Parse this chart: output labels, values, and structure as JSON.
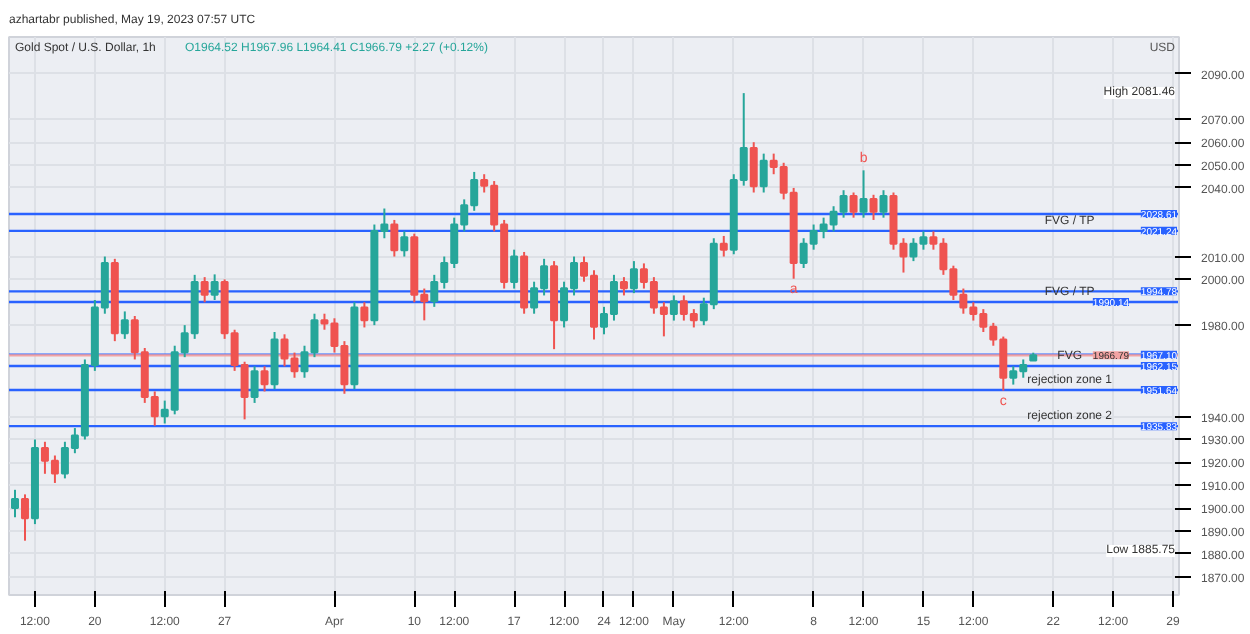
{
  "chart_data": {
    "type": "candlestick",
    "title": "Gold Spot / U.S. Dollar, 1h",
    "subtitle": "O1964.52 H1967.96 L1964.41 C1966.79 +2.27 (+0.12%)",
    "ylabel": "USD",
    "categories": [
      null,
      null,
      "12:00",
      null,
      null,
      null,
      null,
      null,
      "20",
      null,
      null,
      null,
      null,
      null,
      null,
      "12:00",
      null,
      null,
      null,
      null,
      null,
      "27",
      null,
      null,
      null,
      null,
      null,
      null,
      null,
      null,
      null,
      null,
      "Apr",
      null,
      null,
      null,
      null,
      null,
      null,
      null,
      "10",
      null,
      null,
      null,
      "12:00",
      null,
      null,
      null,
      null,
      null,
      "17",
      null,
      null,
      null,
      null,
      "12:00",
      null,
      null,
      null,
      "24",
      null,
      null,
      "12:00",
      null,
      null,
      null,
      "May",
      null,
      null,
      null,
      null,
      null,
      "12:00",
      null,
      null,
      null,
      null,
      null,
      null,
      null,
      "8",
      null,
      null,
      null,
      null,
      "12:00",
      null,
      null,
      null,
      null,
      null,
      "15",
      null,
      null,
      null,
      null,
      "12:00",
      null,
      null,
      null,
      null,
      null,
      null,
      null,
      "22",
      null,
      null,
      null,
      null,
      null,
      "12:00",
      null,
      null,
      null,
      null,
      null,
      "29"
    ],
    "ohlc": [
      [
        1900,
        1908,
        1896,
        1904.0
      ],
      [
        1904.0,
        1906,
        1885.75,
        1895.6
      ],
      [
        1895.6,
        1930,
        1893,
        1926.3
      ],
      [
        1926.3,
        1929,
        1915,
        1920.7
      ],
      [
        1920.7,
        1923,
        1911,
        1915.1
      ],
      [
        1915.1,
        1929,
        1913,
        1926.3
      ],
      [
        1926.3,
        1935,
        1924,
        1931.8
      ],
      [
        1931.8,
        1965,
        1930,
        1962.6
      ],
      [
        1962.6,
        1991,
        1960,
        1987.7
      ],
      [
        1987.7,
        2010,
        1985,
        2007.2
      ],
      [
        2007.2,
        2009,
        1973,
        1976.5
      ],
      [
        1976.5,
        1986,
        1974,
        1982.1
      ],
      [
        1982.1,
        1984,
        1965,
        1968.1
      ],
      [
        1968.1,
        1970,
        1946,
        1948.6
      ],
      [
        1948.6,
        1951,
        1936,
        1940.2
      ],
      [
        1940.2,
        1947,
        1937,
        1943.0
      ],
      [
        1943.0,
        1971,
        1941,
        1968.1
      ],
      [
        1968.1,
        1980,
        1966,
        1976.5
      ],
      [
        1976.5,
        2002,
        1974,
        1998.9
      ],
      [
        1998.9,
        2001,
        1990,
        1993.3
      ],
      [
        1993.3,
        2002.2,
        1991,
        1998.9
      ],
      [
        1998.9,
        2000,
        1974,
        1976.5
      ],
      [
        1976.5,
        1978,
        1960,
        1962.6
      ],
      [
        1962.6,
        1964,
        1938.8,
        1948.6
      ],
      [
        1948.6,
        1962,
        1946,
        1959.8
      ],
      [
        1959.8,
        1962,
        1951,
        1954.2
      ],
      [
        1954.2,
        1977,
        1952,
        1973.7
      ],
      [
        1973.7,
        1976,
        1962,
        1965.4
      ],
      [
        1965.4,
        1968,
        1957,
        1959.8
      ],
      [
        1959.8,
        1971,
        1957,
        1968.1
      ],
      [
        1968.1,
        1985,
        1966,
        1982.1
      ],
      [
        1982.1,
        1985,
        1978,
        1980.7
      ],
      [
        1980.7,
        1983,
        1968,
        1970.9
      ],
      [
        1970.9,
        1973,
        1950,
        1954.2
      ],
      [
        1954.2,
        1990,
        1952,
        1987.7
      ],
      [
        1987.7,
        1990,
        1979,
        1982.1
      ],
      [
        1982.1,
        2024,
        1980,
        2021.2
      ],
      [
        2021.2,
        2031,
        2018,
        2024.0
      ],
      [
        2024.0,
        2026,
        2010,
        2012.8
      ],
      [
        2012.8,
        2021,
        2010,
        2018.4
      ],
      [
        2018.4,
        2020,
        1990,
        1993.3
      ],
      [
        1993.3,
        1996,
        1982.1,
        1990.5
      ],
      [
        1990.5,
        2002,
        1988,
        1998.9
      ],
      [
        1998.9,
        2010,
        1996,
        2007.2
      ],
      [
        2007.2,
        2027,
        2005,
        2024.0
      ],
      [
        2024.0,
        2035,
        2021,
        2032.4
      ],
      [
        2032.4,
        2047.0,
        2030,
        2043.5
      ],
      [
        2043.5,
        2046,
        2038,
        2041
      ],
      [
        2041,
        2043,
        2021,
        2024.0
      ],
      [
        2024.0,
        2026,
        1996,
        1998.9
      ],
      [
        1998.9,
        2013,
        1996,
        2010.0
      ],
      [
        2010.0,
        2012,
        1985,
        1987.7
      ],
      [
        1987.7,
        1999,
        1985,
        1996.1
      ],
      [
        1996.1,
        2009,
        1993,
        2005.8
      ],
      [
        2005.8,
        2008,
        1969.5,
        1982.1
      ],
      [
        1982.1,
        1999,
        1979,
        1996.1
      ],
      [
        1996.1,
        2010,
        1993,
        2007.2
      ],
      [
        2007.2,
        2010,
        1999,
        2001.6
      ],
      [
        2001.6,
        2004,
        1973.7,
        1979.3
      ],
      [
        1979.3,
        1988,
        1976,
        1984.9
      ],
      [
        1984.9,
        2002,
        1982,
        1998.9
      ],
      [
        1998.9,
        2001,
        1993,
        1996.1
      ],
      [
        1996.1,
        2008,
        1994,
        2004.4
      ],
      [
        2004.4,
        2007,
        1996,
        1998.9
      ],
      [
        1998.9,
        2001,
        1985,
        1987.7
      ],
      [
        1987.7,
        1990,
        1975.1,
        1984.9
      ],
      [
        1984.9,
        1993,
        1982,
        1990.5
      ],
      [
        1990.5,
        1993,
        1982,
        1984.9
      ],
      [
        1984.9,
        1987,
        1979,
        1982.1
      ],
      [
        1982.1,
        1992,
        1980,
        1989.1
      ],
      [
        1989.1,
        2018,
        1987,
        2015.6
      ],
      [
        2015.6,
        2019,
        2010,
        2013
      ],
      [
        2013,
        2046,
        2011,
        2043.5
      ],
      [
        2043.5,
        2081.46,
        2041,
        2057.5
      ],
      [
        2057.5,
        2060,
        2038,
        2040.7
      ],
      [
        2040.7,
        2055,
        2038,
        2051.9
      ],
      [
        2051.9,
        2055,
        2046,
        2049.1
      ],
      [
        2049.1,
        2051,
        2035,
        2037.9
      ],
      [
        2037.9,
        2040,
        2000.3,
        2007.2
      ],
      [
        2007.2,
        2018,
        2005,
        2015.6
      ],
      [
        2015.6,
        2024,
        2013,
        2021.2
      ],
      [
        2021.2,
        2027,
        2018,
        2024.0
      ],
      [
        2024.0,
        2032,
        2021,
        2029.6
      ],
      [
        2029.6,
        2039,
        2027,
        2036.5
      ],
      [
        2036.5,
        2038,
        2027,
        2029.6
      ],
      [
        2029.6,
        2047.7,
        2027,
        2035.2
      ],
      [
        2035.2,
        2037,
        2026,
        2029.6
      ],
      [
        2029.6,
        2039,
        2027,
        2036.5
      ],
      [
        2036.5,
        2038,
        2013,
        2015.6
      ],
      [
        2015.6,
        2018,
        2003,
        2010.0
      ],
      [
        2010.0,
        2018,
        2008,
        2015.6
      ],
      [
        2015.6,
        2021,
        2013,
        2018.4
      ],
      [
        2018.4,
        2021,
        2013,
        2015.6
      ],
      [
        2015.6,
        2018,
        2002,
        2004.4
      ],
      [
        2004.4,
        2006,
        1991,
        1993.3
      ],
      [
        1993.3,
        1996,
        1985,
        1987.7
      ],
      [
        1987.7,
        1990,
        1982,
        1984.9
      ],
      [
        1984.9,
        1987,
        1977,
        1979.3
      ],
      [
        1979.3,
        1981,
        1971,
        1973.7
      ],
      [
        1973.7,
        1975,
        1951.4,
        1957.0
      ],
      [
        1957.0,
        1962,
        1954,
        1959.8
      ],
      [
        1959.8,
        1965,
        1957,
        1962.6
      ],
      [
        1964.52,
        1967.96,
        1964.41,
        1966.79
      ],
      null,
      null,
      null,
      null,
      null,
      null,
      null,
      null,
      null,
      null,
      null,
      null,
      null,
      null
    ],
    "ylim": [
      1862,
      2106
    ],
    "yticks": [
      {
        "value": 1870,
        "label": "1870.00"
      },
      {
        "value": 1880,
        "label": "1880.00"
      },
      {
        "value": 1890,
        "label": "1890.00"
      },
      {
        "value": 1900,
        "label": "1900.00"
      },
      {
        "value": 1910,
        "label": "1910.00"
      },
      {
        "value": 1920,
        "label": "1920.00"
      },
      {
        "value": 1930,
        "label": "1930.00"
      },
      {
        "value": 1940,
        "label": "1940.00"
      },
      {
        "value": 1980,
        "label": "1980.00"
      },
      {
        "value": 2000,
        "label": "2000.00"
      },
      {
        "value": 2010,
        "label": "2010.00"
      },
      {
        "value": 2040,
        "label": "2040.00"
      },
      {
        "value": 2050,
        "label": "2050.00"
      },
      {
        "value": 2060,
        "label": "2060.00"
      },
      {
        "value": 2070,
        "label": "2070.00"
      },
      {
        "value": 2090,
        "label": "2090.00"
      }
    ],
    "grid": true,
    "ref_lines": [
      {
        "axis": "y",
        "value": 2028.61,
        "label": "2028.61",
        "color": "#2962ff"
      },
      {
        "axis": "y",
        "value": 2021.24,
        "label": "2021.24",
        "color": "#2962ff"
      },
      {
        "axis": "y",
        "value": 1994.78,
        "label": "1994.78",
        "color": "#2962ff"
      },
      {
        "axis": "y",
        "value": 1990.14,
        "label": "1990.14",
        "color": "#2962ff"
      },
      {
        "axis": "y",
        "value": 1967.1,
        "label": "1967.10",
        "color": "#2962ff"
      },
      {
        "axis": "y",
        "value": 1966.79,
        "label": "1966.79",
        "color": "#f2a3a3"
      },
      {
        "axis": "y",
        "value": 1962.15,
        "label": "1962.15",
        "color": "#2962ff"
      },
      {
        "axis": "y",
        "value": 1951.64,
        "label": "1951.64",
        "color": "#2962ff"
      },
      {
        "axis": "y",
        "value": 1935.83,
        "label": "1935.83",
        "color": "#2962ff"
      }
    ],
    "annotations": [
      "azhartabr published, May 19, 2023 07:57 UTC",
      "High 2081.46",
      "Low 1885.75",
      {
        "text": "FVG / TP",
        "y": 2021.24
      },
      {
        "text": "FVG / TP",
        "y": 1990.14
      },
      {
        "text": "FVG",
        "y": 1962.15
      },
      {
        "text": "rejection zone 1",
        "y": 1951.64
      },
      {
        "text": "rejection zone 2",
        "y": 1935.83
      },
      {
        "text": "a",
        "y": 2000.3
      },
      {
        "text": "b",
        "y": 2047.7
      },
      {
        "text": "c",
        "y": 1951.4
      }
    ]
  }
}
